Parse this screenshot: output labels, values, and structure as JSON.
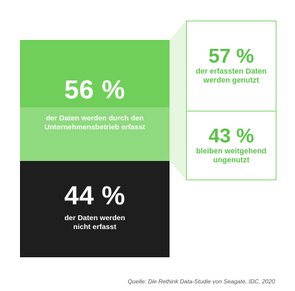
{
  "chart_data": {
    "type": "bar",
    "segments": [
      {
        "value": 56,
        "value_label": "56 %",
        "label": "der Daten werden durch den Unternehmensbetrieb erfasst",
        "color": "#6fcf5a",
        "breakdown": [
          {
            "value": 57,
            "value_label": "57 %",
            "label": "der erfassten Daten werden genutzt"
          },
          {
            "value": 43,
            "value_label": "43 %",
            "label": "bleiben weitgehend ungenutzt"
          }
        ]
      },
      {
        "value": 44,
        "value_label": "44 %",
        "label": "der Daten werden nicht erfasst",
        "color": "#1e1e1e"
      }
    ],
    "source": "Quelle: Die Rethink Data-Studie von Seagate, IDC, 2020"
  },
  "colors": {
    "green": "#6fcf5a",
    "green_light": "#8fd97e",
    "dark": "#1e1e1e",
    "text_green": "#5cc24a"
  }
}
